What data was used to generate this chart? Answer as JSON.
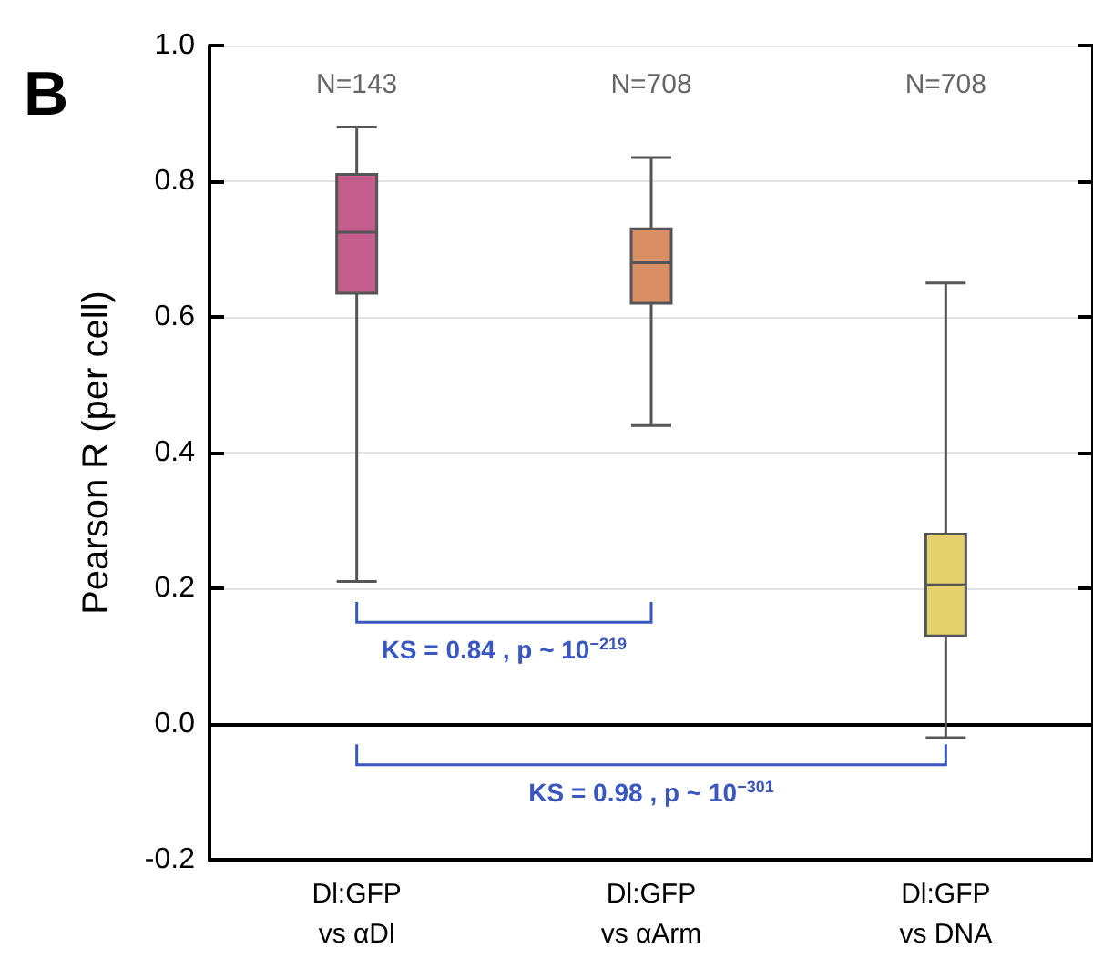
{
  "chart_data": {
    "type": "box",
    "title": "B",
    "ylabel": "Pearson R (per cell)",
    "categories": [
      "Dl:GFP\nvs αDl",
      "Dl:GFP\nvs αArm",
      "Dl:GFP\nvs DNA"
    ],
    "boxes": [
      {
        "low": 0.21,
        "q1": 0.635,
        "median": 0.725,
        "q3": 0.81,
        "high": 0.88
      },
      {
        "low": 0.44,
        "q1": 0.62,
        "median": 0.68,
        "q3": 0.73,
        "high": 0.835
      },
      {
        "low": -0.02,
        "q1": 0.13,
        "median": 0.205,
        "q3": 0.28,
        "high": 0.65
      }
    ],
    "colors": [
      "#c45d8c",
      "#d98f66",
      "#e5d06e"
    ],
    "ylim": [
      -0.2,
      1.0
    ],
    "yticks": [
      {
        "value": -0.2,
        "label": "-0.2"
      },
      {
        "value": 0,
        "label": "0.0"
      },
      {
        "value": 0.2,
        "label": "0.2"
      },
      {
        "value": 0.4,
        "label": "0.4"
      },
      {
        "value": 0.6,
        "label": "0.6"
      },
      {
        "value": 0.8,
        "label": "0.8"
      },
      {
        "value": 1,
        "label": "1.0"
      }
    ],
    "grid": "y",
    "annotations": [
      "N=143",
      "N=708",
      "N=708",
      "KS = 0.84 , p ~ 10$^{−219}$",
      "KS = 0.98 , p ~ 10$^{−301}$"
    ]
  }
}
